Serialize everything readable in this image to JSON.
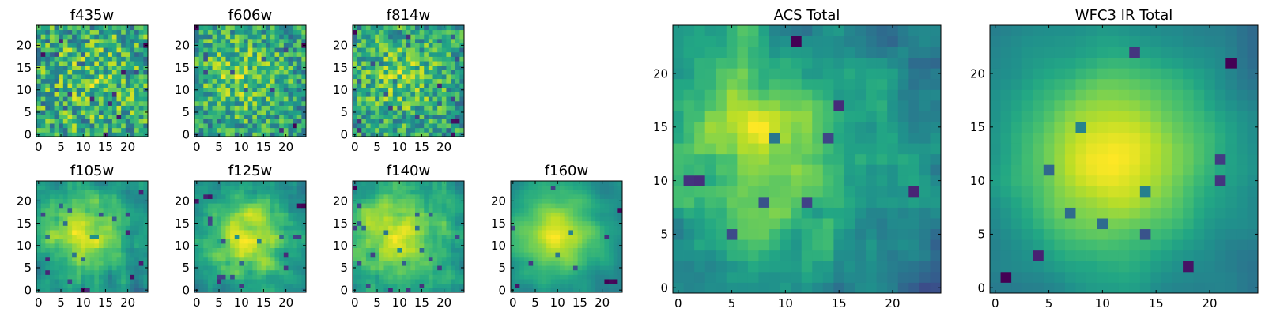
{
  "colormap": "viridis",
  "colors": {
    "axes": "#000000",
    "background": "#ffffff"
  },
  "chart_data": [
    {
      "type": "heatmap",
      "title": "f435w",
      "xlim": [
        -0.5,
        24.5
      ],
      "ylim": [
        -0.5,
        24.5
      ],
      "xticks": [
        0,
        5,
        10,
        15,
        20
      ],
      "yticks": [
        0,
        5,
        10,
        15,
        20
      ],
      "size": [
        25,
        25
      ],
      "pattern": "noisy, peak near (12, 13)",
      "sharpness": 0.25,
      "noise": 0.55,
      "seed": 11
    },
    {
      "type": "heatmap",
      "title": "f606w",
      "xlim": [
        -0.5,
        24.5
      ],
      "ylim": [
        -0.5,
        24.5
      ],
      "xticks": [
        0,
        5,
        10,
        15,
        20
      ],
      "yticks": [
        0,
        5,
        10,
        15,
        20
      ],
      "size": [
        25,
        25
      ],
      "pattern": "noisy, peak near (10, 13)",
      "sharpness": 0.4,
      "noise": 0.45,
      "seed": 23
    },
    {
      "type": "heatmap",
      "title": "f814w",
      "xlim": [
        -0.5,
        24.5
      ],
      "ylim": [
        -0.5,
        24.5
      ],
      "xticks": [
        0,
        5,
        10,
        15,
        20
      ],
      "yticks": [
        0,
        5,
        10,
        15,
        20
      ],
      "size": [
        25,
        25
      ],
      "pattern": "noisy, peak near (10, 13)",
      "sharpness": 0.4,
      "noise": 0.45,
      "seed": 37
    },
    {
      "type": "heatmap",
      "title": "ACS Total",
      "xlim": [
        -0.5,
        24.5
      ],
      "ylim": [
        -0.5,
        24.5
      ],
      "xticks": [
        0,
        5,
        10,
        15,
        20
      ],
      "yticks": [
        0,
        5,
        10,
        15,
        20
      ],
      "size": [
        25,
        25
      ],
      "pattern": "peak near (8, 13)",
      "sharpness": 0.55,
      "noise": 0.35,
      "seed": 41
    },
    {
      "type": "heatmap",
      "title": "WFC3 IR Total",
      "xlim": [
        -0.5,
        24.5
      ],
      "ylim": [
        -0.5,
        24.5
      ],
      "xticks": [
        0,
        5,
        10,
        15,
        20
      ],
      "yticks": [
        0,
        5,
        10,
        15,
        20
      ],
      "size": [
        25,
        25
      ],
      "pattern": "smooth, peak near (11, 12)",
      "sharpness": 0.85,
      "noise": 0.15,
      "seed": 53
    },
    {
      "type": "heatmap",
      "title": "f105w",
      "xlim": [
        -0.5,
        24.5
      ],
      "ylim": [
        -0.5,
        24.5
      ],
      "xticks": [
        0,
        5,
        10,
        15,
        20
      ],
      "yticks": [
        0,
        5,
        10,
        15,
        20
      ],
      "size": [
        25,
        25
      ],
      "pattern": "peak near (10, 13)",
      "sharpness": 0.6,
      "noise": 0.35,
      "seed": 67
    },
    {
      "type": "heatmap",
      "title": "f125w",
      "xlim": [
        -0.5,
        24.5
      ],
      "ylim": [
        -0.5,
        24.5
      ],
      "xticks": [
        0,
        5,
        10,
        15,
        20
      ],
      "yticks": [
        0,
        5,
        10,
        15,
        20
      ],
      "size": [
        25,
        25
      ],
      "pattern": "peak near (12, 12)",
      "sharpness": 0.6,
      "noise": 0.35,
      "seed": 71
    },
    {
      "type": "heatmap",
      "title": "f140w",
      "xlim": [
        -0.5,
        24.5
      ],
      "ylim": [
        -0.5,
        24.5
      ],
      "xticks": [
        0,
        5,
        10,
        15,
        20
      ],
      "yticks": [
        0,
        5,
        10,
        15,
        20
      ],
      "size": [
        25,
        25
      ],
      "pattern": "peak near (10, 12)",
      "sharpness": 0.6,
      "noise": 0.35,
      "seed": 83
    },
    {
      "type": "heatmap",
      "title": "f160w",
      "xlim": [
        -0.5,
        24.5
      ],
      "ylim": [
        -0.5,
        24.5
      ],
      "xticks": [
        0,
        5,
        10,
        15,
        20
      ],
      "yticks": [
        0,
        5,
        10,
        15,
        20
      ],
      "size": [
        25,
        25
      ],
      "pattern": "smooth, peak near (10, 13)",
      "sharpness": 0.7,
      "noise": 0.3,
      "seed": 97
    }
  ]
}
